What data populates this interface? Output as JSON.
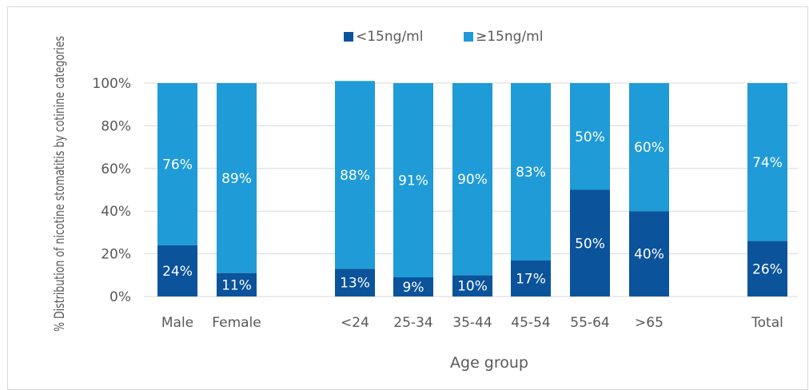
{
  "chart_data": {
    "type": "bar",
    "stacked": true,
    "categories": [
      "Male",
      "Female",
      "<24",
      "25-34",
      "35-44",
      "45-54",
      "55-64",
      ">65",
      "Total"
    ],
    "series": [
      {
        "name": "<15ng/ml",
        "color": "#0b539b",
        "values": [
          24,
          11,
          13,
          9,
          10,
          17,
          50,
          40,
          26
        ],
        "labels": [
          "24%",
          "11%",
          "13%",
          "9%",
          "10%",
          "17%",
          "50%",
          "40%",
          "26%"
        ]
      },
      {
        "name": "≥15ng/ml",
        "color": "#1f9bd7",
        "values": [
          76,
          89,
          88,
          91,
          90,
          83,
          50,
          60,
          74
        ],
        "labels": [
          "76%",
          "89%",
          "88%",
          "91%",
          "90%",
          "83%",
          "50%",
          "60%",
          "74%"
        ]
      }
    ],
    "ylabel": "% Distribution of nicotine stomatitis by cotinine categories",
    "xlabel": "Age group",
    "ylim": [
      0,
      100
    ],
    "yticks": [
      "0%",
      "20%",
      "40%",
      "60%",
      "80%",
      "100%"
    ],
    "grid": true,
    "legend_position": "top"
  }
}
